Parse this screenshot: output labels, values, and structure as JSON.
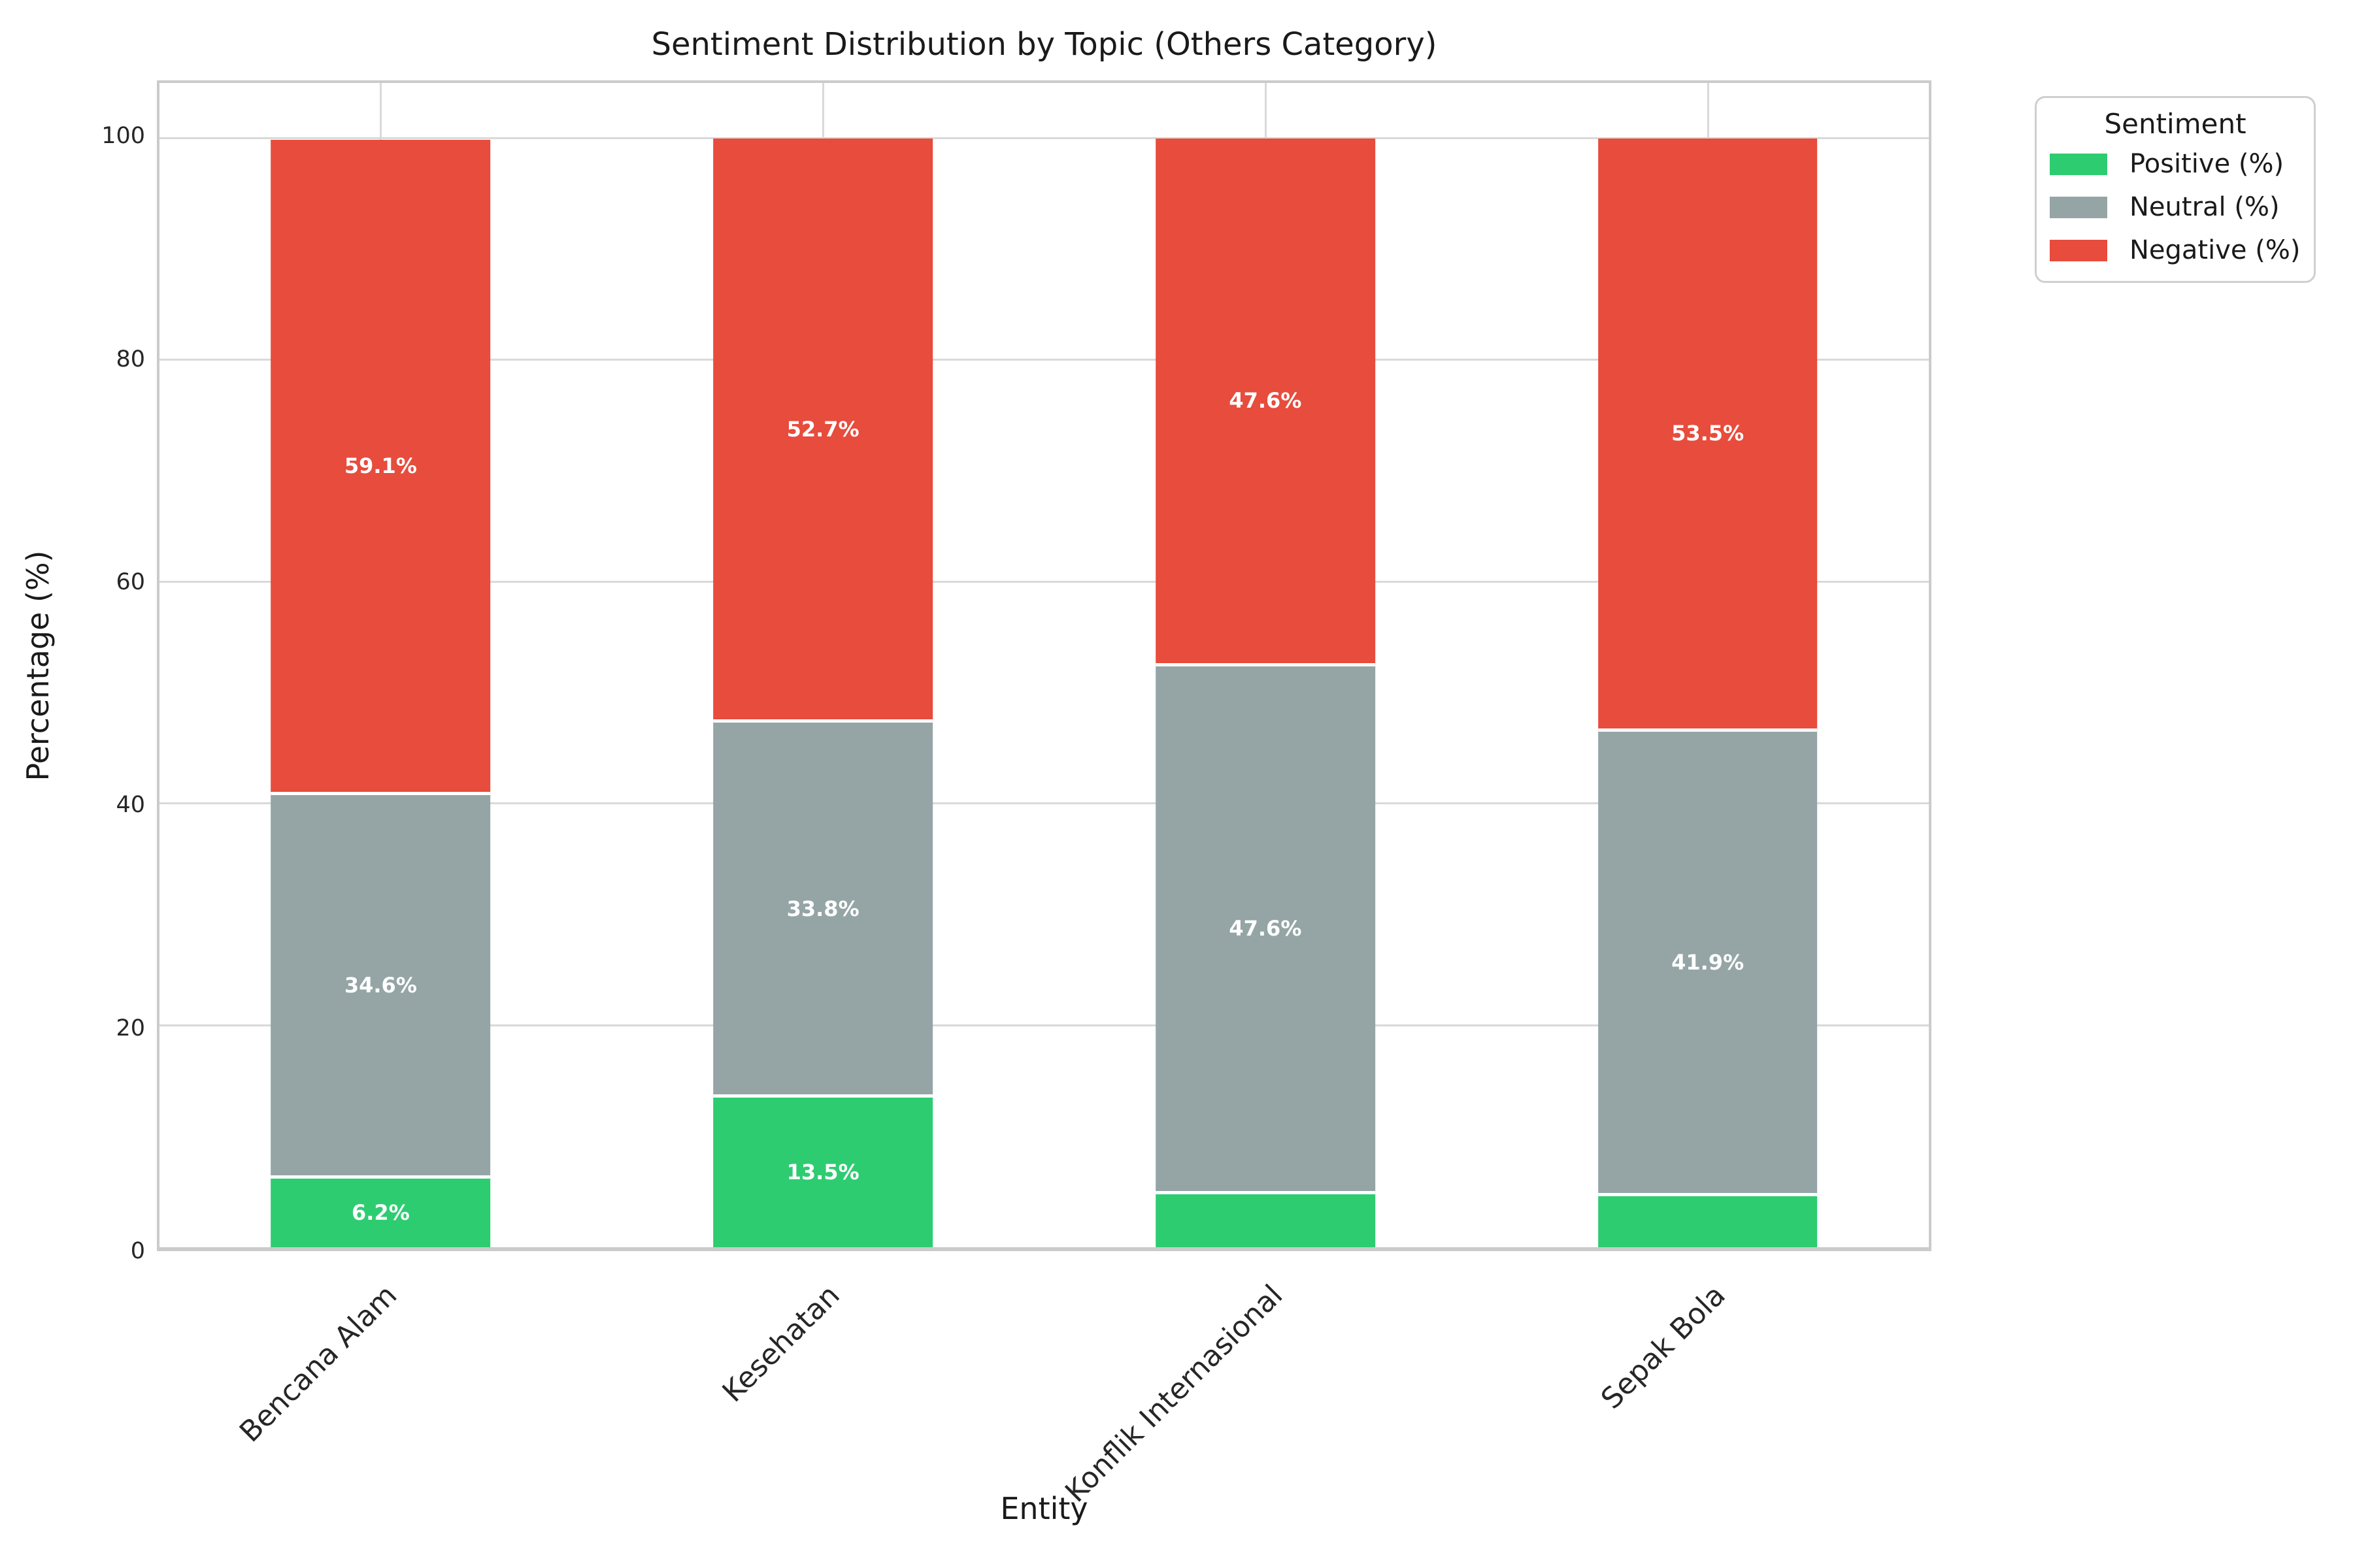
{
  "title": "Sentiment Distribution by Topic (Others Category)",
  "x_axis": {
    "label": "Entity",
    "tick_labels": [
      "Bencana Alam",
      "Kesehatan",
      "Konflik Internasional",
      "Sepak Bola"
    ]
  },
  "y_axis": {
    "label": "Percentage (%)",
    "tick_labels": [
      "0",
      "20",
      "40",
      "60",
      "80",
      "100"
    ]
  },
  "legend": {
    "title": "Sentiment",
    "entries": [
      {
        "label": "Positive (%)",
        "color": "#2ecc71"
      },
      {
        "label": "Neutral (%)",
        "color": "#95a5a6"
      },
      {
        "label": "Negative (%)",
        "color": "#e74c3c"
      }
    ]
  },
  "colors": {
    "positive": "#2ecc71",
    "neutral": "#95a5a6",
    "negative": "#e74c3c",
    "grid": "#d9d9d9",
    "spine": "#cbcbcb",
    "value_label": "#ffffff"
  },
  "chart_data": {
    "type": "bar",
    "stacked": true,
    "title": "Sentiment Distribution by Topic (Others Category)",
    "xlabel": "Entity",
    "ylabel": "Percentage (%)",
    "categories": [
      "Bencana Alam",
      "Kesehatan",
      "Konflik Internasional",
      "Sepak Bola"
    ],
    "series": [
      {
        "name": "Positive (%)",
        "color": "#2ecc71",
        "values": [
          6.2,
          13.5,
          4.8,
          4.6
        ],
        "labels": [
          "6.2%",
          "13.5%",
          "",
          ""
        ]
      },
      {
        "name": "Neutral (%)",
        "color": "#95a5a6",
        "values": [
          34.6,
          33.8,
          47.6,
          41.9
        ],
        "labels": [
          "34.6%",
          "33.8%",
          "47.6%",
          "41.9%"
        ]
      },
      {
        "name": "Negative (%)",
        "color": "#e74c3c",
        "values": [
          59.1,
          52.7,
          47.6,
          53.5
        ],
        "labels": [
          "59.1%",
          "52.7%",
          "47.6%",
          "53.5%"
        ]
      }
    ],
    "ylim": [
      0,
      105
    ],
    "y_ticks": [
      0,
      20,
      40,
      60,
      80,
      100
    ],
    "grid": true,
    "bar_width_fraction": 0.496,
    "legend_position": "outside upper right"
  }
}
